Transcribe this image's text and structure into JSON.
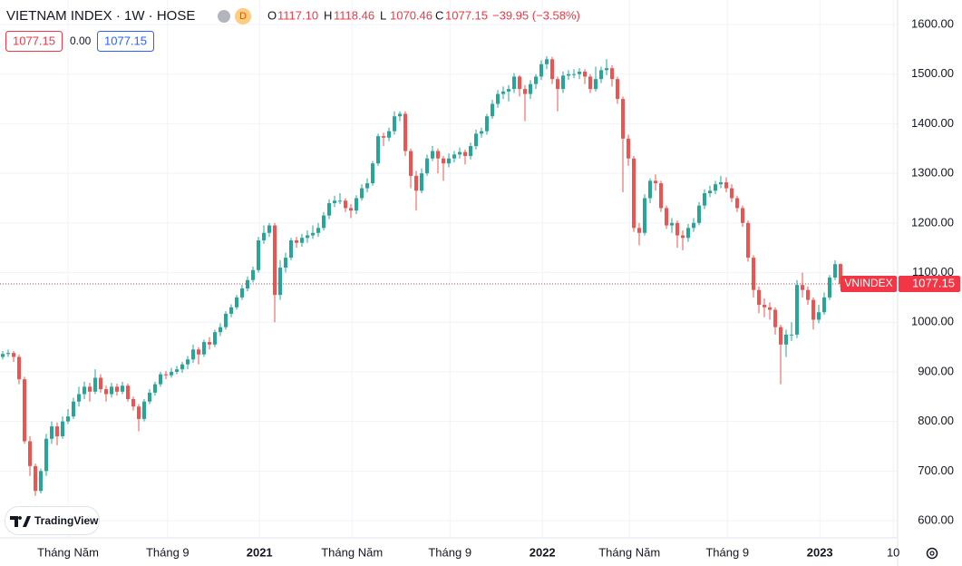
{
  "chart_data": {
    "type": "candlestick",
    "title": "VIETNAM INDEX · 1W · HOSE",
    "badge": "D",
    "ohlc_legend": [
      {
        "label": "O",
        "value": "1117.10"
      },
      {
        "label": "H",
        "value": "1118.46"
      },
      {
        "label": "L",
        "value": "1070.46"
      },
      {
        "label": "C",
        "value": "1077.15"
      }
    ],
    "change": "−39.95 (−3.58%)",
    "indicator_values": [
      "1077.15",
      "0.00",
      "1077.15"
    ],
    "symbol_tag": "VNINDEX",
    "last_price": {
      "value": 1077.15,
      "label": "1077.15"
    },
    "watermark": "TradingView",
    "up_color": "#26a69a",
    "down_color": "#ef5350",
    "open": [
      930,
      936,
      938,
      930,
      885,
      760,
      710,
      660,
      700,
      765,
      790,
      770,
      800,
      810,
      840,
      855,
      870,
      860,
      888,
      865,
      855,
      870,
      860,
      872,
      845,
      830,
      805,
      840,
      858,
      875,
      895,
      893,
      900,
      905,
      915,
      925,
      945,
      935,
      960,
      955,
      980,
      990,
      1017,
      1030,
      1050,
      1068,
      1085,
      1105,
      1165,
      1180,
      1195,
      1055,
      1110,
      1130,
      1165,
      1160,
      1170,
      1175,
      1180,
      1190,
      1215,
      1240,
      1245,
      1245,
      1230,
      1225,
      1250,
      1270,
      1280,
      1320,
      1375,
      1372,
      1385,
      1415,
      1420,
      1345,
      1295,
      1265,
      1300,
      1330,
      1345,
      1330,
      1320,
      1330,
      1338,
      1343,
      1335,
      1355,
      1380,
      1385,
      1415,
      1440,
      1460,
      1465,
      1470,
      1495,
      1470,
      1460,
      1480,
      1495,
      1520,
      1530,
      1490,
      1470,
      1497,
      1500,
      1500,
      1505,
      1495,
      1470,
      1490,
      1508,
      1512,
      1490,
      1450,
      1370,
      1330,
      1190,
      1180,
      1250,
      1285,
      1280,
      1230,
      1195,
      1200,
      1175,
      1170,
      1190,
      1200,
      1235,
      1260,
      1265,
      1278,
      1282,
      1270,
      1250,
      1230,
      1200,
      1130,
      1065,
      1035,
      1030,
      1025,
      990,
      955,
      975,
      975,
      1075,
      1065,
      1045,
      1005,
      1020,
      1050,
      1090,
      1117.1
    ],
    "high": [
      942,
      945,
      942,
      935,
      890,
      770,
      715,
      705,
      775,
      800,
      798,
      810,
      825,
      848,
      870,
      880,
      878,
      905,
      895,
      872,
      878,
      876,
      880,
      876,
      850,
      835,
      845,
      865,
      880,
      900,
      902,
      908,
      912,
      920,
      932,
      955,
      950,
      965,
      970,
      985,
      998,
      1022,
      1036,
      1055,
      1075,
      1092,
      1112,
      1172,
      1195,
      1200,
      1200,
      1125,
      1140,
      1170,
      1172,
      1178,
      1185,
      1195,
      1200,
      1222,
      1248,
      1255,
      1260,
      1250,
      1238,
      1256,
      1278,
      1290,
      1325,
      1380,
      1382,
      1392,
      1425,
      1425,
      1425,
      1350,
      1305,
      1310,
      1338,
      1355,
      1350,
      1335,
      1340,
      1345,
      1352,
      1348,
      1362,
      1388,
      1392,
      1420,
      1448,
      1468,
      1475,
      1478,
      1502,
      1498,
      1478,
      1488,
      1500,
      1528,
      1536,
      1535,
      1495,
      1505,
      1508,
      1510,
      1512,
      1510,
      1500,
      1515,
      1515,
      1530,
      1518,
      1495,
      1455,
      1378,
      1335,
      1200,
      1258,
      1290,
      1298,
      1285,
      1235,
      1210,
      1205,
      1185,
      1198,
      1210,
      1242,
      1268,
      1275,
      1285,
      1295,
      1292,
      1278,
      1255,
      1235,
      1205,
      1135,
      1072,
      1048,
      1040,
      1030,
      995,
      985,
      1000,
      1085,
      1100,
      1072,
      1050,
      1035,
      1060,
      1095,
      1125,
      1118.46
    ],
    "low": [
      925,
      930,
      920,
      875,
      755,
      690,
      650,
      655,
      690,
      755,
      752,
      765,
      795,
      805,
      830,
      845,
      840,
      855,
      858,
      840,
      848,
      852,
      855,
      840,
      822,
      780,
      800,
      835,
      852,
      870,
      885,
      888,
      895,
      898,
      905,
      918,
      915,
      930,
      945,
      950,
      972,
      985,
      1010,
      1025,
      1045,
      1062,
      1080,
      1100,
      1158,
      1172,
      1000,
      1045,
      1100,
      1125,
      1150,
      1152,
      1160,
      1168,
      1172,
      1185,
      1208,
      1232,
      1238,
      1222,
      1210,
      1218,
      1245,
      1262,
      1275,
      1315,
      1355,
      1365,
      1378,
      1405,
      1335,
      1270,
      1225,
      1260,
      1295,
      1325,
      1300,
      1285,
      1312,
      1322,
      1330,
      1318,
      1328,
      1348,
      1372,
      1378,
      1410,
      1432,
      1450,
      1445,
      1462,
      1455,
      1405,
      1450,
      1470,
      1488,
      1510,
      1480,
      1425,
      1462,
      1488,
      1492,
      1490,
      1480,
      1462,
      1465,
      1482,
      1498,
      1475,
      1440,
      1262,
      1315,
      1182,
      1155,
      1175,
      1240,
      1265,
      1222,
      1188,
      1180,
      1150,
      1145,
      1162,
      1182,
      1195,
      1228,
      1252,
      1258,
      1270,
      1262,
      1242,
      1222,
      1192,
      1122,
      1050,
      1018,
      1010,
      1005,
      975,
      875,
      930,
      962,
      968,
      1050,
      1035,
      985,
      998,
      1015,
      1045,
      1085,
      1070.46
    ],
    "close": [
      936,
      938,
      930,
      885,
      760,
      710,
      660,
      700,
      765,
      790,
      770,
      800,
      810,
      840,
      855,
      870,
      860,
      888,
      865,
      855,
      870,
      860,
      872,
      845,
      830,
      805,
      840,
      858,
      875,
      895,
      893,
      900,
      905,
      915,
      925,
      945,
      935,
      960,
      955,
      980,
      990,
      1017,
      1030,
      1050,
      1068,
      1085,
      1105,
      1165,
      1180,
      1195,
      1055,
      1110,
      1130,
      1165,
      1160,
      1170,
      1175,
      1180,
      1190,
      1215,
      1240,
      1245,
      1245,
      1230,
      1225,
      1250,
      1270,
      1280,
      1320,
      1375,
      1372,
      1385,
      1415,
      1420,
      1345,
      1295,
      1265,
      1300,
      1330,
      1345,
      1330,
      1320,
      1330,
      1338,
      1343,
      1335,
      1355,
      1380,
      1385,
      1415,
      1440,
      1460,
      1465,
      1470,
      1495,
      1470,
      1460,
      1480,
      1495,
      1520,
      1530,
      1490,
      1470,
      1497,
      1500,
      1500,
      1505,
      1495,
      1470,
      1490,
      1508,
      1512,
      1490,
      1450,
      1370,
      1330,
      1190,
      1180,
      1250,
      1285,
      1280,
      1230,
      1195,
      1200,
      1175,
      1170,
      1190,
      1200,
      1235,
      1260,
      1265,
      1278,
      1282,
      1270,
      1250,
      1230,
      1200,
      1130,
      1065,
      1035,
      1030,
      1025,
      990,
      955,
      975,
      975,
      1075,
      1065,
      1045,
      1005,
      1020,
      1050,
      1090,
      1117,
      1077.15
    ],
    "xlim": [
      -0.5,
      164.5
    ],
    "xticks": [
      {
        "value": 12,
        "label": "Tháng Năm"
      },
      {
        "value": 30.3,
        "label": "Tháng 9"
      },
      {
        "value": 47.2,
        "label": "2021"
      },
      {
        "value": 64.2,
        "label": "Tháng Năm"
      },
      {
        "value": 82.2,
        "label": "Tháng 9"
      },
      {
        "value": 99.2,
        "label": "2022"
      },
      {
        "value": 115.2,
        "label": "Tháng Năm"
      },
      {
        "value": 133.2,
        "label": "Tháng 9"
      },
      {
        "value": 150.2,
        "label": "2023"
      },
      {
        "value": 163.7,
        "label": "10"
      }
    ],
    "ylim": [
      565.3,
      1649.4
    ],
    "yticks": [
      {
        "value": 600,
        "label": "600.00"
      },
      {
        "value": 700,
        "label": "700.00"
      },
      {
        "value": 800,
        "label": "800.00"
      },
      {
        "value": 900,
        "label": "900.00"
      },
      {
        "value": 1000,
        "label": "1000.00"
      },
      {
        "value": 1100,
        "label": "1100.00"
      },
      {
        "value": 1200,
        "label": "1200.00"
      },
      {
        "value": 1300,
        "label": "1300.00"
      },
      {
        "value": 1400,
        "label": "1400.00"
      },
      {
        "value": 1500,
        "label": "1500.00"
      },
      {
        "value": 1600,
        "label": "1600.00"
      }
    ],
    "grid": true
  }
}
